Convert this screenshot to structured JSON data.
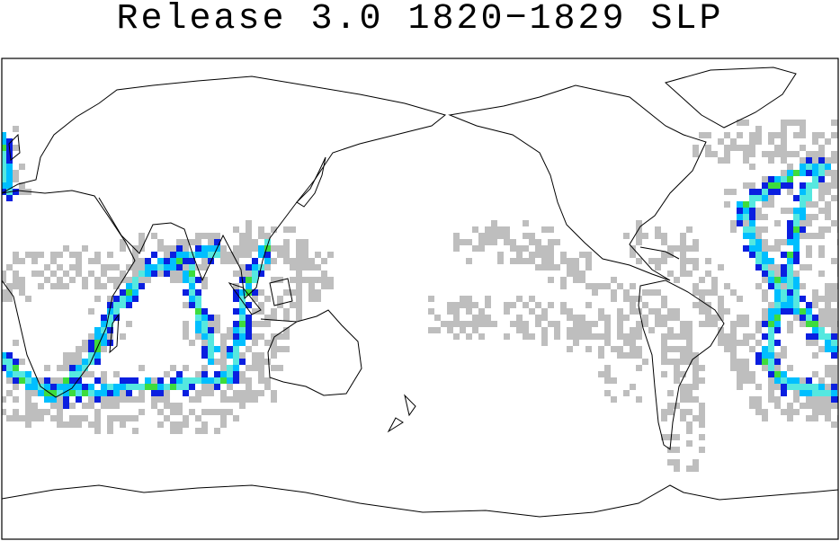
{
  "header": {
    "title": "Release 3.0 1820−1829 SLP"
  }
}
